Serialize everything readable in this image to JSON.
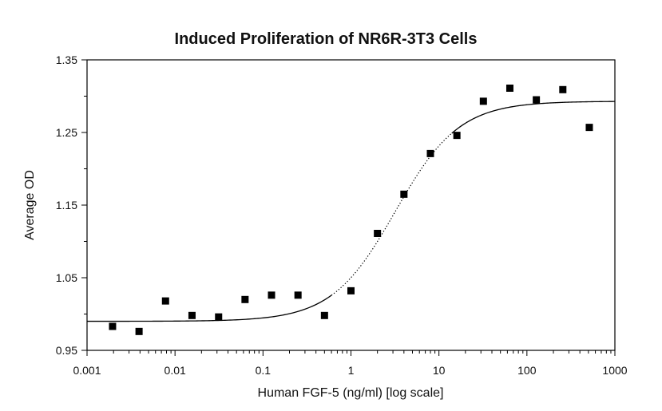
{
  "chart_data": {
    "type": "scatter",
    "title": "Induced Proliferation of NR6R-3T3 Cells",
    "xlabel": "Human FGF-5 (ng/ml) [log scale]",
    "ylabel": "Average OD",
    "x_scale": "log",
    "xlim": [
      0.001,
      1000
    ],
    "ylim": [
      0.95,
      1.35
    ],
    "x_ticks": [
      "0.001",
      "0.01",
      "0.1",
      "1",
      "10",
      "100",
      "1000"
    ],
    "x_tick_values": [
      0.001,
      0.01,
      0.1,
      1,
      10,
      100,
      1000
    ],
    "y_ticks": [
      "0.95",
      "1.05",
      "1.15",
      "1.25",
      "1.35"
    ],
    "y_tick_values": [
      0.95,
      1.05,
      1.15,
      1.25,
      1.35
    ],
    "grid": false,
    "series": [
      {
        "marker": "square",
        "color": "#000000",
        "points": [
          {
            "x": 0.00195,
            "y": 0.983
          },
          {
            "x": 0.0039,
            "y": 0.976
          },
          {
            "x": 0.0078,
            "y": 1.018
          },
          {
            "x": 0.0156,
            "y": 0.998
          },
          {
            "x": 0.0313,
            "y": 0.996
          },
          {
            "x": 0.0625,
            "y": 1.02
          },
          {
            "x": 0.125,
            "y": 1.026
          },
          {
            "x": 0.25,
            "y": 1.026
          },
          {
            "x": 0.5,
            "y": 0.998
          },
          {
            "x": 1.0,
            "y": 1.032
          },
          {
            "x": 2.0,
            "y": 1.111
          },
          {
            "x": 4.0,
            "y": 1.165
          },
          {
            "x": 8.0,
            "y": 1.221
          },
          {
            "x": 16.0,
            "y": 1.246
          },
          {
            "x": 32.0,
            "y": 1.293
          },
          {
            "x": 64.0,
            "y": 1.311
          },
          {
            "x": 128.0,
            "y": 1.295
          },
          {
            "x": 256.0,
            "y": 1.309
          },
          {
            "x": 512.0,
            "y": 1.257
          }
        ]
      }
    ],
    "fit_curve": {
      "model": "4PL",
      "bottom": 0.99,
      "top": 1.293,
      "ec50": 3.2,
      "hill": 1.2,
      "color": "#000000"
    }
  }
}
